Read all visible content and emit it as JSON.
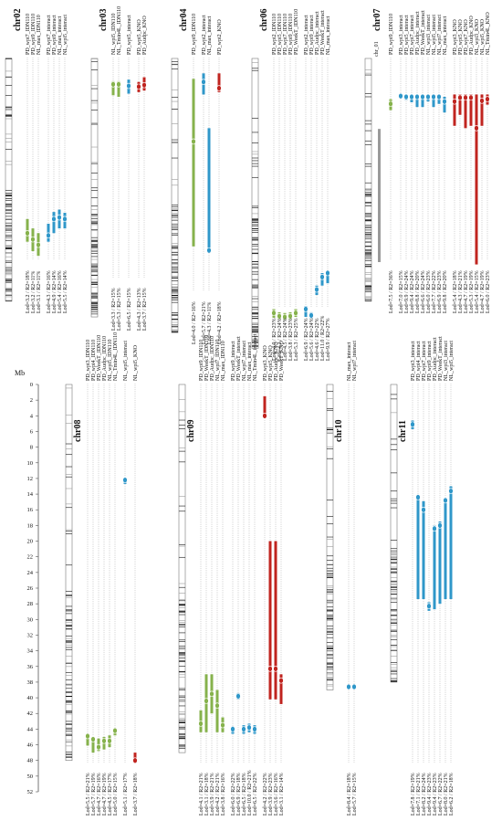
{
  "axis": {
    "label": "Mb",
    "lim": [
      0,
      52
    ],
    "ticks": [
      0,
      2,
      4,
      6,
      8,
      10,
      12,
      14,
      16,
      18,
      20,
      22,
      24,
      26,
      28,
      30,
      32,
      34,
      36,
      38,
      40,
      42,
      44,
      46,
      48,
      50,
      52
    ]
  },
  "panels": [
    {
      "chromosome": "chr02",
      "length": 31,
      "qtls": [
        {
          "trait": "PD_wpi7_IDN110",
          "lod": "Lod=3.2 / R2=18%",
          "color": "#86b24c",
          "start": 20.5,
          "end": 23.4,
          "peak": 22.3
        },
        {
          "trait": "PD_wpi9_IDN110",
          "lod": "Lod=3.2 / R2=11%",
          "color": "#86b24c",
          "start": 21.7,
          "end": 24.6,
          "peak": 23.1
        },
        {
          "trait": "NL_max_IDN110",
          "lod": "Lod=3.1 / R2=11%",
          "color": "#86b24c",
          "start": 22.3,
          "end": 25.2,
          "peak": 23.8
        },
        {
          "trait": "PD_wpi7_interact",
          "lod": "Lod=4.3 / R2=16%",
          "color": "#2f97c9",
          "start": 21.1,
          "end": 23.4,
          "peak": 22.6
        },
        {
          "trait": "PD_wpi9_interact",
          "lod": "Lod=4.9 / R2=14%",
          "color": "#2f97c9",
          "start": 19.6,
          "end": 22.3,
          "peak": 20.5
        },
        {
          "trait": "NL_max_interact",
          "lod": "Lod=5.4 / R2=16%",
          "color": "#2f97c9",
          "start": 19.3,
          "end": 21.7,
          "peak": 20.3
        },
        {
          "trait": "NL_wpi5_interact",
          "lod": "Lod=5.5 / R2=14%",
          "color": "#2f97c9",
          "start": 19.7,
          "end": 21.7,
          "peak": 20.5
        }
      ]
    },
    {
      "chromosome": "chr03",
      "length": 33,
      "qtls": [
        {
          "trait": "NL_wpi5_IDN110",
          "lod": "Lod=3.3 / R2=15%",
          "color": "#86b24c",
          "start": 2.9,
          "end": 4.7,
          "peak": 3.3
        },
        {
          "trait": "NL_Tmin4L_IDN110",
          "lod": "Lod=5.3 / R2=15%",
          "color": "#86b24c",
          "start": 2.9,
          "end": 4.9,
          "peak": 3.3
        },
        {
          "trait": "PD_wpi5_interact",
          "lod": "Lod=6.5 / R2=15%",
          "color": "#2f97c9",
          "start": 2.7,
          "end": 4.5,
          "peak": 3.5
        },
        {
          "trait": "PD_wpi5_KNO",
          "lod": "Lod=4.3 / R2=13%",
          "color": "#c0241f",
          "start": 3.0,
          "end": 4.3,
          "peak": 3.6
        },
        {
          "trait": "PD_Audpc_KNO",
          "lod": "Lod=3.7 / R2=15%",
          "color": "#c0241f",
          "start": 2.4,
          "end": 4.1,
          "peak": 3.4
        }
      ]
    },
    {
      "chromosome": "chr04",
      "length": 35,
      "qtls": [
        {
          "trait": "PD_wpi9_IDN110",
          "lod": "Lod=4.0 / R2=16%",
          "color": "#86b24c",
          "start": 2.6,
          "end": 24.0,
          "peak": 10.6
        },
        {
          "trait": "PD_wpi2_interact",
          "lod": "Lod=5.7 / R2=21%",
          "color": "#2f97c9",
          "start": 1.9,
          "end": 4.6,
          "peak": 3.0
        },
        {
          "trait": "NL_max_interact",
          "lod": "Lod=4.3 / R2=11%",
          "color": "#2f97c9",
          "start": 8.9,
          "end": 24.5,
          "peak": 24.5
        },
        {
          "trait": "PD_wpi2_KNO",
          "lod": "Lod=4.2 / R2=18%",
          "color": "#c0241f",
          "start": 1.9,
          "end": 4.3,
          "peak": 3.8
        }
      ]
    },
    {
      "chromosome": "chr06",
      "length": 37,
      "qtls": [
        {
          "trait": "PD_wpi2_IDN110",
          "lod": "Lod=4.0 / R2=23%",
          "color": "#86b24c",
          "start": 32.0,
          "end": 33.1,
          "peak": 32.5
        },
        {
          "trait": "PD_wpi5_IDN110",
          "lod": "Lod=4.2 / R2=24%",
          "color": "#86b24c",
          "start": 32.4,
          "end": 33.3,
          "peak": 32.9
        },
        {
          "trait": "PD_wpi7_IDN110",
          "lod": "Lod=4.5 / R2=24%",
          "color": "#86b24c",
          "start": 32.5,
          "end": 33.4,
          "peak": 33.0
        },
        {
          "trait": "PD_wpi9_IDN110",
          "lod": "Lod=3.8 / R2=23%",
          "color": "#86b24c",
          "start": 32.4,
          "end": 33.3,
          "peak": 32.9
        },
        {
          "trait": "PD_WeekT_IDN110",
          "lod": "Lod=5.3 / R2=25%",
          "color": "#86b24c",
          "start": 32.0,
          "end": 33.0,
          "peak": 32.5
        },
        {
          "trait": "PD_wpi2_interact",
          "lod": "Lod=6.9 / R2=24%",
          "color": "#2f97c9",
          "start": 31.6,
          "end": 33.0,
          "peak": 32.0
        },
        {
          "trait": "PD_wpi9_interact",
          "lod": "Lod=5.6 / R2=24%",
          "color": "#2f97c9",
          "start": 32.4,
          "end": 33.2,
          "peak": 32.8
        },
        {
          "trait": "PD_Audpc_interact",
          "lod": "Lod=4.6 / R2=22%",
          "color": "#2f97c9",
          "start": 29.0,
          "end": 30.2,
          "peak": 29.5
        },
        {
          "trait": "PD_WeekT_interact",
          "lod": "Lod=11.0 / R2=22%",
          "color": "#2f97c9",
          "start": 27.4,
          "end": 29.0,
          "peak": 27.9
        },
        {
          "trait": "NL_max_interact",
          "lod": "Lod=9.9 / R2=27%",
          "color": "#2f97c9",
          "start": 27.2,
          "end": 28.7,
          "peak": 27.4
        }
      ]
    },
    {
      "chromosome": "chr07",
      "sublabel": "chr_01",
      "length": 31,
      "qtls": [
        {
          "trait": "PD_wpi9_IDN110",
          "lod": "Lod=7.5 / R2=36%",
          "color": "#86b24c",
          "start": 5.2,
          "end": 6.6,
          "peak": 5.8
        },
        {
          "trait": "PD_wpi3_interact",
          "lod": "Lod=7.0 / R2=15%",
          "color": "#2f97c9",
          "start": 4.6,
          "end": 5.1,
          "peak": 4.8
        },
        {
          "trait": "PD_wpi5_interact",
          "lod": "Lod=9.9 / R2=24%",
          "color": "#2f97c9",
          "start": 4.6,
          "end": 5.3,
          "peak": 4.9
        },
        {
          "trait": "PD_wpi7_interact",
          "lod": "Lod=9.4 / R2=24%",
          "color": "#2f97c9",
          "start": 4.6,
          "end": 5.6,
          "peak": 4.9
        },
        {
          "trait": "PD_Audpc_interact",
          "lod": "Lod=8.8 / R2=20%",
          "color": "#2f97c9",
          "start": 4.6,
          "end": 6.2,
          "peak": 4.9
        },
        {
          "trait": "PD_WeekT_interact",
          "lod": "Lod=6.6 / R2=24%",
          "color": "#2f97c9",
          "start": 4.7,
          "end": 6.2,
          "peak": 4.9
        },
        {
          "trait": "NL_wpi3_interact",
          "lod": "Lod=6.0 / R2=23%",
          "color": "#2f97c9",
          "start": 4.6,
          "end": 5.5,
          "peak": 4.9
        },
        {
          "trait": "NL_wpi5_interact",
          "lod": "Lod=7.7 / R2=22%",
          "color": "#2f97c9",
          "start": 4.6,
          "end": 6.2,
          "peak": 4.9
        },
        {
          "trait": "NL_wpi7_interact",
          "lod": "Lod=6.9 / R2=23%",
          "color": "#2f97c9",
          "start": 4.6,
          "end": 5.8,
          "peak": 4.9
        },
        {
          "trait": "NL_max_interact",
          "lod": "Lod=9.8 / R2=20%",
          "color": "#2f97c9",
          "start": 4.9,
          "end": 6.9,
          "peak": 5.5
        },
        {
          "trait": "PD_wpi3_KNO",
          "lod": "Lod=5.4 / R2=18%",
          "color": "#c0241f",
          "start": 4.6,
          "end": 8.6,
          "peak": 5.5
        },
        {
          "trait": "PD_wpi5_KNO",
          "lod": "Lod=4.3 / R2=21%",
          "color": "#c0241f",
          "start": 4.6,
          "end": 7.2,
          "peak": 5.0
        },
        {
          "trait": "PD_wpi7_KNO",
          "lod": "Lod=4.7 / R2=19%",
          "color": "#c0241f",
          "start": 4.6,
          "end": 8.9,
          "peak": 5.0
        },
        {
          "trait": "PD_Audpc_KNO",
          "lod": "Lod=5.3 / R2=19%",
          "color": "#c0241f",
          "start": 4.6,
          "end": 8.6,
          "peak": 5.0
        },
        {
          "trait": "NL_wpi3_KNO",
          "lod": "Lod=5.4 / R2=15%",
          "color": "#c0241f",
          "start": 4.6,
          "end": 26.3,
          "peak": 8.9
        },
        {
          "trait": "NL_wpi5_KNO",
          "lod": "Lod=4.7 / R2=19%",
          "color": "#c0241f",
          "start": 4.6,
          "end": 8.6,
          "peak": 5.4
        },
        {
          "trait": "NL_Tmin4L_KNO",
          "lod": "Lod=6.0 / R2=23%",
          "color": "#c0241f",
          "start": 4.6,
          "end": 5.9,
          "peak": 5.2
        }
      ]
    },
    {
      "chromosome": "chr08",
      "length": 48,
      "qtls": [
        {
          "trait": "PD_wpi3_IDN110",
          "lod": "Lod=5.5 / R2=21%",
          "color": "#86b24c",
          "start": 44.6,
          "end": 46.1,
          "peak": 44.9
        },
        {
          "trait": "PD_wpi4_IDN110",
          "lod": "Lod=5.7 / R2=19%",
          "color": "#86b24c",
          "start": 45.0,
          "end": 47.0,
          "peak": 45.3
        },
        {
          "trait": "PD_WeekT_IDN110",
          "lod": "Lod=4.7 / R2=16%",
          "color": "#86b24c",
          "start": 45.2,
          "end": 46.8,
          "peak": 46.3
        },
        {
          "trait": "PD_Audpc_IDN110",
          "lod": "Lod=4.7 / R2=19%",
          "color": "#86b24c",
          "start": 45.0,
          "end": 46.6,
          "peak": 45.5
        },
        {
          "trait": "NL_wpi5_IDN110",
          "lod": "Lod=4.5 / R2=17%",
          "color": "#86b24c",
          "start": 44.8,
          "end": 46.3,
          "peak": 45.5
        },
        {
          "trait": "NL_Tmin4L_IDN110",
          "lod": "Lod=5.0 / R2=15%",
          "color": "#86b24c",
          "start": 43.9,
          "end": 44.8,
          "peak": 44.2
        },
        {
          "trait": "NL_wpi5_interact",
          "lod": "Lod=5.1 / R2=17%",
          "color": "#2f97c9",
          "start": 12.0,
          "end": 12.7,
          "peak": 12.2
        },
        {
          "trait": "NL_wpi5_KNO",
          "lod": "Lod=3.7 / R2=18%",
          "color": "#c0241f",
          "start": 47.0,
          "end": 48.3,
          "peak": 48.0
        }
      ]
    },
    {
      "chromosome": "chr09",
      "length": 47,
      "qtls": [
        {
          "trait": "PD_wpi9_IDN110",
          "lod": "Lod=4.1 / R2=21%",
          "color": "#86b24c",
          "start": 41.6,
          "end": 44.4,
          "peak": 43.3
        },
        {
          "trait": "PD_WeekT_IDN110",
          "lod": "Lod=3.1 / R2=18%",
          "color": "#86b24c",
          "start": 37.0,
          "end": 44.4,
          "peak": 40.4
        },
        {
          "trait": "PD_Audpc_IDN110",
          "lod": "Lod=3.9 / R2=21%",
          "color": "#86b24c",
          "start": 37.0,
          "end": 42.0,
          "peak": 39.5
        },
        {
          "trait": "NL_wpi7_IDN110",
          "lod": "Lod=4.2 / R2=21%",
          "color": "#86b24c",
          "start": 39.0,
          "end": 44.4,
          "peak": 41.0
        },
        {
          "trait": "NL_max_IDN110",
          "lod": "Lod=3.8 / R2=16%",
          "color": "#86b24c",
          "start": 42.5,
          "end": 44.4,
          "peak": 43.5
        },
        {
          "trait": "PD_wpi9_interact",
          "lod": "Lod=6.0 / R2=22%",
          "color": "#2f97c9",
          "start": 43.7,
          "end": 44.6,
          "peak": 44.0
        },
        {
          "trait": "PD_WeekT_interact",
          "lod": "Lod=6.9 / R2=18%",
          "color": "#2f97c9",
          "start": 39.4,
          "end": 40.2,
          "peak": 39.8
        },
        {
          "trait": "NL_wpi7_interact",
          "lod": "Lod=6.5 / R2=18%",
          "color": "#2f97c9",
          "start": 43.5,
          "end": 44.6,
          "peak": 44.0
        },
        {
          "trait": "NL_max_interact",
          "lod": "Lod=10.0 / R2=21%",
          "color": "#2f97c9",
          "start": 43.3,
          "end": 44.4,
          "peak": 43.8
        },
        {
          "trait": "NL_Tmin4L_interact",
          "lod": "Lod=6.5 / R2=22%",
          "color": "#2f97c9",
          "start": 43.5,
          "end": 44.6,
          "peak": 44.0
        },
        {
          "trait": "PD_wpi3_KNO",
          "lod": "Lod=4.2 / R2=22%",
          "color": "#c0241f",
          "start": 1.5,
          "end": 4.2,
          "peak": 4.0
        },
        {
          "trait": "PD_wpi5_KNO",
          "lod": "Lod=3.9 / R2=23%",
          "color": "#c0241f",
          "start": 20.0,
          "end": 40.2,
          "peak": 36.3
        },
        {
          "trait": "PD_Audpc_KNO",
          "lod": "Lod=3.6 / R2=16%",
          "color": "#c0241f",
          "start": 20.0,
          "end": 40.2,
          "peak": 36.3
        },
        {
          "trait": "PD_WeekT_KNO",
          "lod": "Lod=3.1 / R2=14%",
          "color": "#c0241f",
          "start": 37.0,
          "end": 40.8,
          "peak": 37.8
        }
      ]
    },
    {
      "chromosome": "chr10",
      "length": 39,
      "qtls": [
        {
          "trait": "NL_max_interact",
          "lod": "Lod=8.4 / R2=18%",
          "color": "#2f97c9",
          "start": 38.3,
          "end": 38.8,
          "peak": 38.6
        },
        {
          "trait": "NL_wpi7_interact",
          "lod": "Lod=5.7 / R2=15%",
          "color": "#2f97c9",
          "start": 38.3,
          "end": 38.8,
          "peak": 38.6
        }
      ]
    },
    {
      "chromosome": "chr11",
      "length": 38,
      "qtls": [
        {
          "trait": "PD_wpi3_interact",
          "lod": "Lod=7.8 / R2=19%",
          "color": "#2f97c9",
          "start": 4.6,
          "end": 5.7,
          "peak": 5.1
        },
        {
          "trait": "PD_wpi4_interact",
          "lod": "Lod=7.1 / R2=21%",
          "color": "#2f97c9",
          "start": 14.3,
          "end": 27.4,
          "peak": 14.4
        },
        {
          "trait": "PD_wpi7_interact",
          "lod": "Lod=8.2 / R2=24%",
          "color": "#2f97c9",
          "start": 14.9,
          "end": 27.4,
          "peak": 16.0
        },
        {
          "trait": "PD_wpi9_interact",
          "lod": "Lod=9.4 / R2=23%",
          "color": "#2f97c9",
          "start": 27.8,
          "end": 28.9,
          "peak": 28.3
        },
        {
          "trait": "PD_Audpc_interact",
          "lod": "Lod=9.4 / R2=23%",
          "color": "#2f97c9",
          "start": 18.0,
          "end": 28.7,
          "peak": 18.4
        },
        {
          "trait": "PD_WeekT_interact",
          "lod": "Lod=6.7 / R2=22%",
          "color": "#2f97c9",
          "start": 17.5,
          "end": 28.0,
          "peak": 18.0
        },
        {
          "trait": "NL_wpi3_interact",
          "lod": "Lod=8.0 / R2=21%",
          "color": "#2f97c9",
          "start": 14.5,
          "end": 27.4,
          "peak": 14.8
        },
        {
          "trait": "NL_wpi5_interact",
          "lod": "Lod=6.2 / R2=18%",
          "color": "#2f97c9",
          "start": 13.0,
          "end": 27.4,
          "peak": 13.6
        }
      ]
    }
  ]
}
